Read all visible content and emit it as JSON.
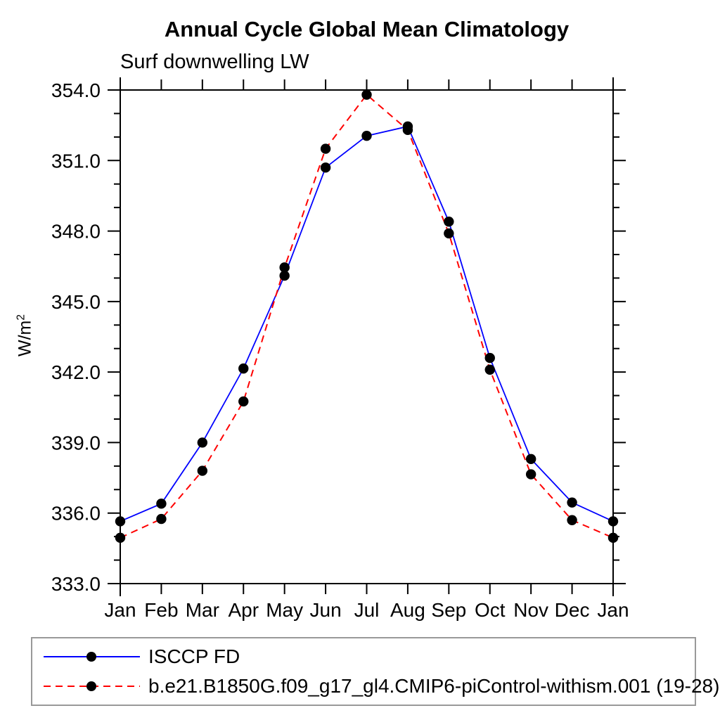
{
  "chart_data": {
    "type": "line",
    "title": "Annual Cycle Global Mean Climatology",
    "subtitle": "Surf downwelling LW",
    "ylabel": {
      "base": "W/m",
      "exponent": "2"
    },
    "categories": [
      "Jan",
      "Feb",
      "Mar",
      "Apr",
      "May",
      "Jun",
      "Jul",
      "Aug",
      "Sep",
      "Oct",
      "Nov",
      "Dec",
      "Jan"
    ],
    "ylim": [
      333.0,
      354.0
    ],
    "ytick_labels": [
      "333.0",
      "336.0",
      "339.0",
      "342.0",
      "345.0",
      "348.0",
      "351.0",
      "354.0"
    ],
    "ytick_major_step": 3,
    "ytick_minor_step": 1,
    "grid": false,
    "legend_position": "bottom-left",
    "series": [
      {
        "name": "ISCCP FD",
        "color": "#0000ff",
        "line_style": "solid",
        "marker": "filled-circle",
        "marker_color": "#000000",
        "values": [
          335.65,
          336.4,
          339.0,
          342.15,
          346.1,
          350.7,
          352.05,
          352.45,
          348.4,
          342.6,
          338.3,
          336.45,
          335.65
        ]
      },
      {
        "name": "b.e21.B1850G.f09_g17_gl4.CMIP6-piControl-withism.001 (19-28)",
        "color": "#ff0000",
        "line_style": "dashed",
        "marker": "filled-circle",
        "marker_color": "#000000",
        "values": [
          334.95,
          335.75,
          337.8,
          340.75,
          346.45,
          351.5,
          353.8,
          352.3,
          347.9,
          342.1,
          337.65,
          335.7,
          334.95
        ]
      }
    ]
  }
}
